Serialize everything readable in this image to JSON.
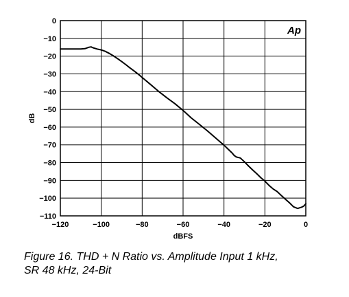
{
  "chart_data": {
    "type": "line",
    "title": "",
    "xlabel": "dBFS",
    "ylabel": "dB",
    "xlim": [
      -120,
      0
    ],
    "ylim": [
      -110,
      0
    ],
    "xticks": [
      -120,
      -100,
      -80,
      -60,
      -40,
      -20,
      0
    ],
    "yticks": [
      0,
      -10,
      -20,
      -30,
      -40,
      -50,
      -60,
      -70,
      -80,
      -90,
      -100,
      -110
    ],
    "xtick_labels": [
      "−120",
      "−100",
      "−80",
      "−60",
      "−40",
      "−20",
      "0"
    ],
    "ytick_labels": [
      "0",
      "−10",
      "−20",
      "−30",
      "−40",
      "−50",
      "−60",
      "−70",
      "−80",
      "−90",
      "−100",
      "−110"
    ],
    "grid": true,
    "series": [
      {
        "x": [
          -120,
          -115,
          -110,
          -108,
          -106,
          -105,
          -104,
          -102,
          -100,
          -98,
          -96,
          -94,
          -92,
          -90,
          -88,
          -86,
          -84,
          -82,
          -80,
          -76,
          -72,
          -68,
          -64,
          -60,
          -56,
          -52,
          -48,
          -44,
          -40,
          -38,
          -36,
          -35,
          -34,
          -32,
          -30,
          -28,
          -26,
          -24,
          -22,
          -20,
          -18,
          -16,
          -14,
          -12,
          -10,
          -8,
          -6,
          -4,
          -2,
          -1,
          0
        ],
        "y": [
          -16,
          -16,
          -16,
          -15.8,
          -15,
          -14.8,
          -15.3,
          -16,
          -16.5,
          -17.3,
          -18.5,
          -19.9,
          -21.4,
          -23.1,
          -24.8,
          -26.6,
          -28.3,
          -30.1,
          -32,
          -35.9,
          -39.8,
          -43.4,
          -46.8,
          -50.6,
          -54.8,
          -58.5,
          -62.2,
          -66.2,
          -70.2,
          -72.4,
          -74.6,
          -76,
          -76.8,
          -77.4,
          -79.5,
          -81.9,
          -84.1,
          -86.2,
          -88.5,
          -90.4,
          -92.8,
          -94.8,
          -96.3,
          -98.5,
          -100.6,
          -102.6,
          -104.9,
          -105.8,
          -105.1,
          -104.5,
          -103.2
        ]
      }
    ],
    "logo": "Ap",
    "line_color": "#000000",
    "grid_color": "#000000",
    "background_color": "#ffffff"
  },
  "caption": {
    "line1": "Figure 16.  THD + N Ratio vs. Amplitude Input 1 kHz,",
    "line2": "SR 48 kHz, 24-Bit"
  }
}
